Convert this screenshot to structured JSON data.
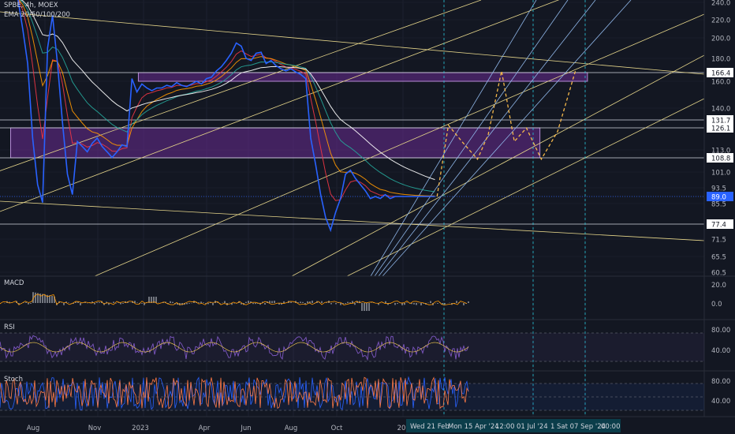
{
  "header": {
    "symbol_line": "SPBE, 4h, MOEX",
    "ema_line": "EMA 20/50/100/200"
  },
  "colors": {
    "background": "#131722",
    "price_line": "#2962ff",
    "ema20": "#f23645",
    "ema50": "#ff9800",
    "ema100": "#26a69a",
    "ema200": "#ffffff",
    "zone_fill": "#6a2c91",
    "trend_line": "#e5d58a",
    "fan_line": "#8fb6e8",
    "projection": "#f5b84a",
    "current_marker": "#2962ff",
    "cursor_line": "#26c6da",
    "macd_hist": "#b2b5be",
    "rsi_line": "#7e57c2",
    "stoch_k": "#2962ff",
    "stoch_d": "#ff7a45"
  },
  "chart_data": {
    "type": "line",
    "title": "SPBE, 4h, MOEX",
    "subtitle": "EMA 20/50/100/200",
    "series": [
      {
        "name": "",
        "x": [
          "2022-07-15",
          "2022-07-22",
          "2022-07-29",
          "2022-08-05",
          "2022-08-12",
          "2022-08-19",
          "2022-08-26",
          "2022-09-02",
          "2022-09-09",
          "2022-09-16",
          "2022-09-23",
          "2022-09-30",
          "2022-10-07",
          "2022-10-14",
          "2022-10-21",
          "2022-10-28",
          "2022-11-04",
          "2022-11-11",
          "2022-11-18",
          "2022-11-25",
          "2022-12-02",
          "2022-12-09",
          "2022-12-16",
          "2022-12-23",
          "2022-12-30",
          "2023-01-06",
          "2023-01-13",
          "2023-01-20",
          "2023-01-27",
          "2023-02-03",
          "2023-02-10",
          "2023-02-17",
          "2023-02-24",
          "2023-03-03",
          "2023-03-10",
          "2023-03-17",
          "2023-03-24",
          "2023-03-31",
          "2023-04-07",
          "2023-04-14",
          "2023-04-21",
          "2023-04-28",
          "2023-05-05",
          "2023-05-12",
          "2023-05-19",
          "2023-05-26",
          "2023-06-02",
          "2023-06-09",
          "2023-06-16",
          "2023-06-23",
          "2023-06-30",
          "2023-07-07",
          "2023-07-14",
          "2023-07-21",
          "2023-07-28",
          "2023-08-04",
          "2023-08-11",
          "2023-08-18",
          "2023-08-25",
          "2023-09-01",
          "2023-09-08",
          "2023-09-15",
          "2023-09-22",
          "2023-09-29",
          "2023-10-06",
          "2023-10-13",
          "2023-10-20",
          "2023-10-27",
          "2023-11-03",
          "2023-11-10",
          "2023-11-17",
          "2023-11-24",
          "2023-12-01",
          "2023-12-08",
          "2023-12-15",
          "2023-12-22",
          "2023-12-29",
          "2024-01-05",
          "2024-01-12",
          "2024-01-19",
          "2024-01-26",
          "2024-02-02",
          "2024-02-09",
          "2024-02-16",
          "2024-02-23"
        ],
        "values": [
          245,
          210,
          175,
          120,
          95,
          86,
          190,
          225,
          175,
          130,
          100,
          90,
          118,
          115,
          112,
          117,
          120,
          115,
          112,
          109,
          112,
          116,
          115,
          162,
          152,
          158,
          155,
          153,
          155,
          155,
          157,
          156,
          159,
          157,
          156,
          158,
          160,
          158,
          162,
          163,
          168,
          172,
          178,
          185,
          195,
          192,
          180,
          178,
          185,
          186,
          175,
          178,
          173,
          170,
          168,
          170,
          167,
          165,
          162,
          120,
          105,
          90,
          80,
          75,
          82,
          88,
          100,
          102,
          98,
          95,
          92,
          88,
          89,
          88,
          90,
          88,
          89,
          89,
          89,
          89,
          89,
          89,
          89,
          89,
          89
        ]
      }
    ],
    "price_axis_ticks": [
      240.0,
      220.0,
      200.0,
      180.0,
      166.4,
      160.0,
      140.0,
      131.7,
      126.1,
      113.0,
      108.8,
      101.0,
      93.5,
      89.0,
      85.5,
      77.4,
      71.5,
      65.5,
      60.5
    ],
    "current_price": "89.0",
    "level_labels": [
      "166.4",
      "131.7",
      "126.1",
      "108.8",
      "77.4"
    ],
    "horizontal_levels": [
      166.4,
      131.7,
      126.1,
      108.8,
      77.4
    ],
    "zones": [
      {
        "from_date": "2023-01-01",
        "to_date": "2024-09-25",
        "low": 160.0,
        "high": 166.4
      },
      {
        "from_date": "2022-07-05",
        "to_date": "2024-07-20",
        "low": 108.8,
        "high": 126.1
      }
    ],
    "projection_path": {
      "x": [
        "2024-02-26",
        "2024-03-13",
        "2024-04-01",
        "2024-04-23",
        "2024-05-08",
        "2024-05-27",
        "2024-06-14",
        "2024-07-01",
        "2024-07-22",
        "2024-08-14",
        "2024-09-08"
      ],
      "values": [
        89,
        128,
        118,
        108,
        122,
        168,
        118,
        126,
        108,
        124,
        168
      ]
    },
    "x_axis_labels": [
      "Aug",
      "Nov",
      "2023",
      "Apr",
      "Jun",
      "Aug",
      "Oct",
      "20"
    ],
    "cursor_dates": [
      "Wed 21 Feb",
      "Mon 15 Apr '24",
      "12:00",
      "01 Jul '24",
      "1",
      "Sat 07 Sep '24",
      "00:00"
    ],
    "indicators": {
      "macd": {
        "name": "MACD",
        "ticks": [
          "20.0",
          "0.0"
        ]
      },
      "rsi": {
        "name": "RSI",
        "ticks": [
          "80.00",
          "40.00"
        ]
      },
      "stoch": {
        "name": "Stoch",
        "ticks": [
          "80.00",
          "40.00"
        ]
      }
    }
  }
}
